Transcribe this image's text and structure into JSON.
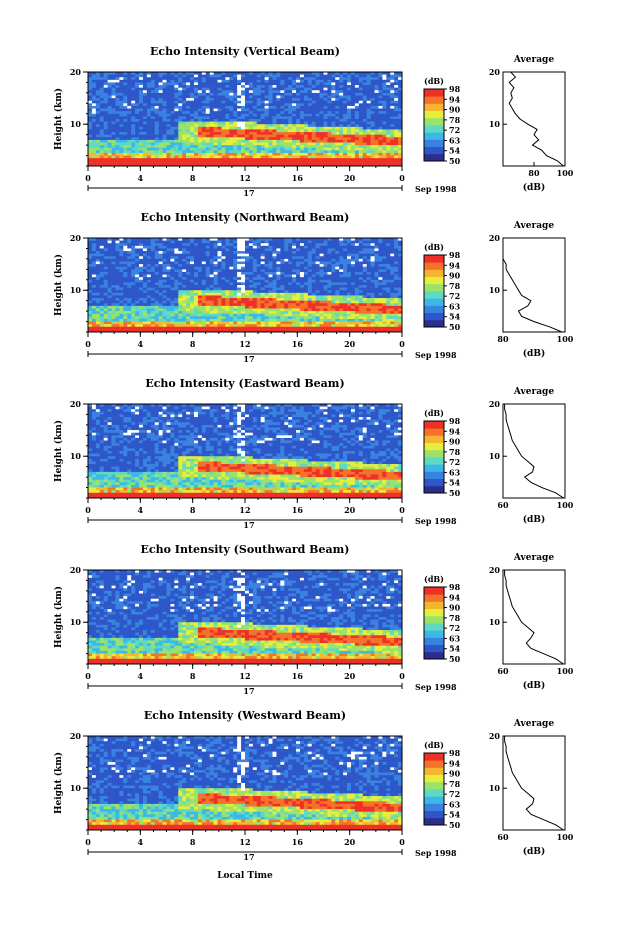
{
  "figure": {
    "x_axis_title": "Local Time",
    "day_label": "17",
    "date_label": "Sep 1998",
    "colorbar_unit": "(dB)",
    "colorbar_ticks": [
      "50",
      "54",
      "63",
      "72",
      "78",
      "90",
      "94",
      "98"
    ],
    "colorbar_colors": [
      "#2b2e8c",
      "#2d56c9",
      "#3a82e0",
      "#3cb8e6",
      "#5fd9c2",
      "#9ae36a",
      "#e6ee3c",
      "#f6b52e",
      "#f4722a",
      "#ef3027"
    ],
    "average_title": "Average",
    "average_xlabel": "(dB)"
  },
  "chart_data": [
    {
      "type": "heatmap",
      "title": "Echo Intensity (Vertical Beam)",
      "ylabel": "Height (km)",
      "x_ticks": [
        "0",
        "4",
        "8",
        "12",
        "16",
        "20",
        "0"
      ],
      "xlim": [
        0,
        24
      ],
      "y_ticks": [
        "20",
        "10"
      ],
      "ylim": [
        2,
        20
      ],
      "layer_heights_km": [
        3.5,
        8.5
      ],
      "average_profile": {
        "x_ticks": [
          "80",
          "100"
        ],
        "xlim": [
          60,
          100
        ],
        "height_km": [
          2,
          3,
          4,
          5,
          6,
          7,
          8,
          9,
          10,
          11,
          12,
          13,
          14,
          15,
          16,
          17,
          18,
          19,
          20
        ],
        "db": [
          99,
          95,
          88,
          85,
          79,
          83,
          80,
          82,
          76,
          71,
          68,
          66,
          64,
          66,
          65,
          67,
          64,
          68,
          65
        ]
      }
    },
    {
      "type": "heatmap",
      "title": "Echo Intensity (Northward Beam)",
      "ylabel": "Height (km)",
      "x_ticks": [
        "0",
        "4",
        "8",
        "12",
        "16",
        "20",
        "0"
      ],
      "xlim": [
        0,
        24
      ],
      "y_ticks": [
        "20",
        "10"
      ],
      "ylim": [
        2,
        20
      ],
      "layer_heights_km": [
        3.0,
        8.0
      ],
      "average_profile": {
        "x_ticks": [
          "80",
          "100"
        ],
        "xlim": [
          80,
          100
        ],
        "height_km": [
          2,
          3,
          4,
          5,
          6,
          7,
          8,
          9,
          10,
          11,
          12,
          13,
          14,
          15,
          16,
          17,
          18,
          19,
          20
        ],
        "db": [
          99,
          95,
          90,
          86,
          85,
          88,
          89,
          86,
          85,
          84,
          83,
          82,
          81,
          81,
          80,
          80,
          80,
          80,
          80
        ]
      }
    },
    {
      "type": "heatmap",
      "title": "Echo Intensity (Eastward Beam)",
      "ylabel": "Height (km)",
      "x_ticks": [
        "0",
        "4",
        "8",
        "12",
        "16",
        "20",
        "0"
      ],
      "xlim": [
        0,
        24
      ],
      "y_ticks": [
        "20",
        "10"
      ],
      "ylim": [
        2,
        20
      ],
      "layer_heights_km": [
        3.0,
        8.0
      ],
      "average_profile": {
        "x_ticks": [
          "60",
          "100"
        ],
        "xlim": [
          60,
          100
        ],
        "height_km": [
          2,
          3,
          4,
          5,
          6,
          7,
          8,
          9,
          10,
          11,
          12,
          13,
          14,
          15,
          16,
          17,
          18,
          19,
          20
        ],
        "db": [
          99,
          94,
          85,
          78,
          74,
          79,
          80,
          76,
          72,
          70,
          68,
          66,
          65,
          64,
          63,
          62,
          62,
          61,
          61
        ]
      }
    },
    {
      "type": "heatmap",
      "title": "Echo Intensity (Southward Beam)",
      "ylabel": "Height (km)",
      "x_ticks": [
        "0",
        "4",
        "8",
        "12",
        "16",
        "20",
        "0"
      ],
      "xlim": [
        0,
        24
      ],
      "y_ticks": [
        "20",
        "10"
      ],
      "ylim": [
        2,
        20
      ],
      "layer_heights_km": [
        3.0,
        8.0
      ],
      "average_profile": {
        "x_ticks": [
          "60",
          "100"
        ],
        "xlim": [
          60,
          100
        ],
        "height_km": [
          2,
          3,
          4,
          5,
          6,
          7,
          8,
          9,
          10,
          11,
          12,
          13,
          14,
          15,
          16,
          17,
          18,
          19,
          20
        ],
        "db": [
          99,
          94,
          86,
          78,
          75,
          78,
          80,
          76,
          72,
          70,
          68,
          66,
          65,
          64,
          63,
          62,
          62,
          61,
          61
        ]
      }
    },
    {
      "type": "heatmap",
      "title": "Echo Intensity (Westward Beam)",
      "ylabel": "Height (km)",
      "x_ticks": [
        "0",
        "4",
        "8",
        "12",
        "16",
        "20",
        "0"
      ],
      "xlim": [
        0,
        24
      ],
      "y_ticks": [
        "20",
        "10"
      ],
      "ylim": [
        2,
        20
      ],
      "layer_heights_km": [
        3.0,
        8.0
      ],
      "average_profile": {
        "x_ticks": [
          "60",
          "100"
        ],
        "xlim": [
          60,
          100
        ],
        "height_km": [
          2,
          3,
          4,
          5,
          6,
          7,
          8,
          9,
          10,
          11,
          12,
          13,
          14,
          15,
          16,
          17,
          18,
          19,
          20
        ],
        "db": [
          99,
          94,
          86,
          78,
          75,
          79,
          80,
          76,
          72,
          70,
          68,
          66,
          65,
          64,
          63,
          62,
          62,
          61,
          61
        ]
      }
    }
  ]
}
